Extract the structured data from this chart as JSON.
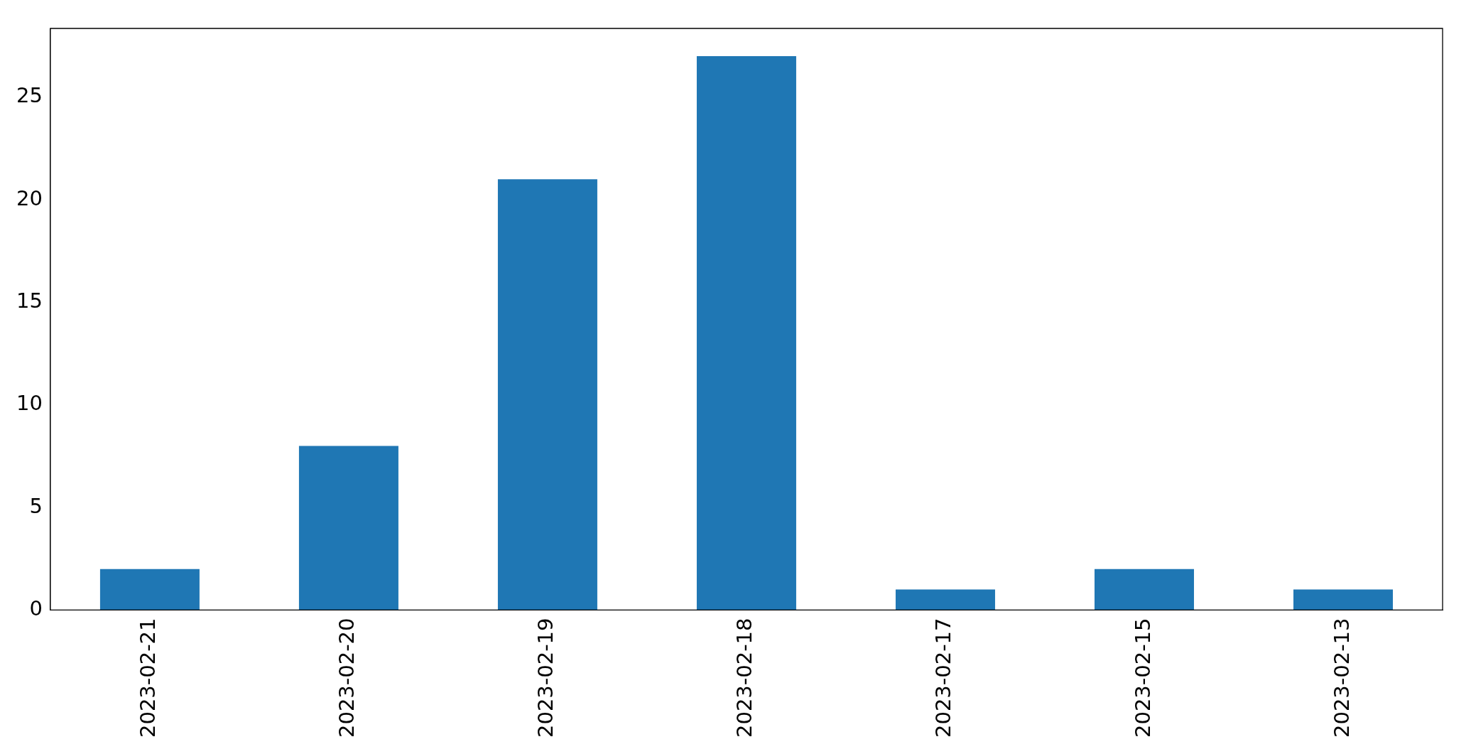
{
  "chart_data": {
    "type": "bar",
    "categories": [
      "2023-02-21",
      "2023-02-20",
      "2023-02-19",
      "2023-02-18",
      "2023-02-17",
      "2023-02-15",
      "2023-02-13"
    ],
    "values": [
      2,
      8,
      21,
      27,
      1,
      2,
      1
    ],
    "color": "#1f77b4",
    "ylim": [
      0,
      28.35
    ],
    "yticks": [
      0,
      5,
      10,
      15,
      20,
      25
    ],
    "grid": false,
    "legend": false
  }
}
